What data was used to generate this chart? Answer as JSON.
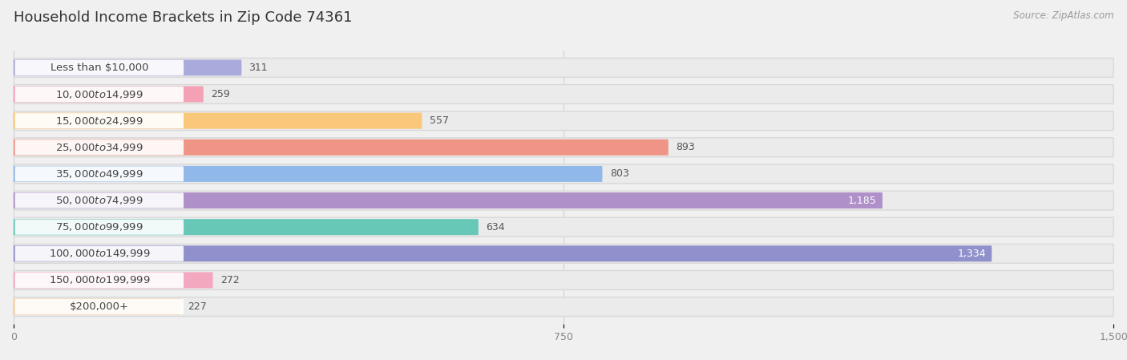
{
  "title": "Household Income Brackets in Zip Code 74361",
  "source": "Source: ZipAtlas.com",
  "categories": [
    "Less than $10,000",
    "$10,000 to $14,999",
    "$15,000 to $24,999",
    "$25,000 to $34,999",
    "$35,000 to $49,999",
    "$50,000 to $74,999",
    "$75,000 to $99,999",
    "$100,000 to $149,999",
    "$150,000 to $199,999",
    "$200,000+"
  ],
  "values": [
    311,
    259,
    557,
    893,
    803,
    1185,
    634,
    1334,
    272,
    227
  ],
  "bar_colors": [
    "#aaaadd",
    "#f4a0b5",
    "#f9c87a",
    "#f09585",
    "#90b8e8",
    "#b090c8",
    "#68c8b8",
    "#9090cc",
    "#f4a8c0",
    "#f9d0a0"
  ],
  "xlim": [
    0,
    1500
  ],
  "xticks": [
    0,
    750,
    1500
  ],
  "bg_color": "#f0f0f0",
  "row_bg_color": "#e8e8e8",
  "title_fontsize": 13,
  "label_fontsize": 9.5,
  "value_fontsize": 9,
  "bar_height": 0.72
}
